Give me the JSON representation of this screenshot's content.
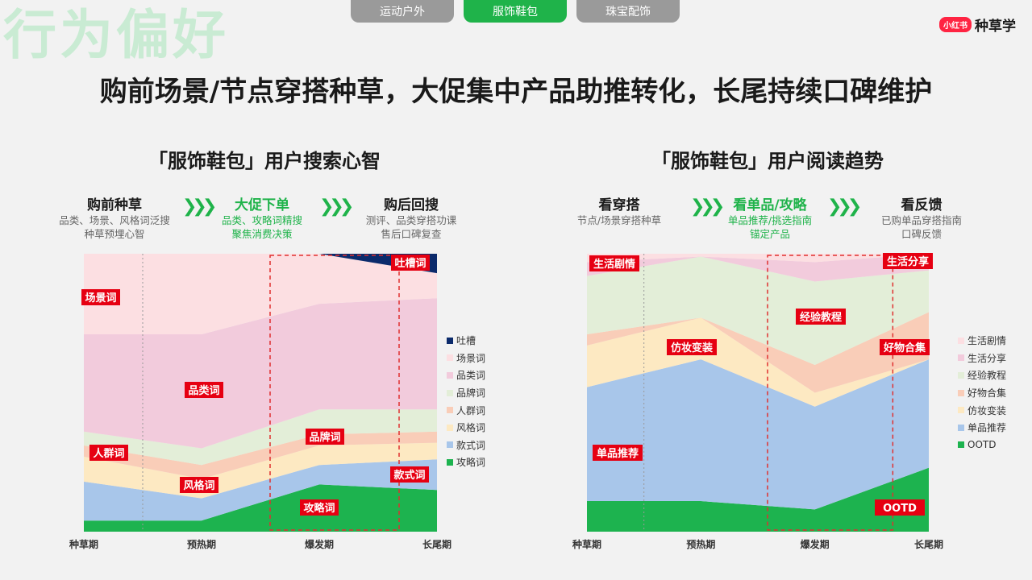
{
  "watermark": "行为偏好",
  "tabs": [
    {
      "label": "运动户外",
      "active": false
    },
    {
      "label": "服饰鞋包",
      "active": true
    },
    {
      "label": "珠宝配饰",
      "active": false
    }
  ],
  "brand": {
    "badge": "小红书",
    "name": "种草学"
  },
  "headline": "购前场景/节点穿搭种草，大促集中产品助推转化，长尾持续口碑维护",
  "left": {
    "title": "「服饰鞋包」用户搜索心智",
    "stages": [
      {
        "title": "购前种草",
        "sub1": "品类、场景、风格词泛搜",
        "sub2": "种草预埋心智"
      },
      {
        "title": "大促下单",
        "sub1": "品类、攻略词精搜",
        "sub2": "聚焦消费决策"
      },
      {
        "title": "购后回搜",
        "sub1": "测评、品类穿搭功课",
        "sub2": "售后口碑复查"
      }
    ]
  },
  "right": {
    "title": "「服饰鞋包」用户阅读趋势",
    "stages": [
      {
        "title": "看穿搭",
        "sub1": "节点/场景穿搭种草",
        "sub2": ""
      },
      {
        "title": "看单品/攻略",
        "sub1": "单品推荐/挑选指南",
        "sub2": "锚定产品"
      },
      {
        "title": "看反馈",
        "sub1": "已购单品穿搭指南",
        "sub2": "口碑反馈"
      }
    ]
  },
  "chart_data": [
    {
      "type": "area",
      "stacked": "percent",
      "categories": [
        "种草期",
        "预热期",
        "爆发期",
        "长尾期"
      ],
      "ylim": [
        0,
        100
      ],
      "legend_position": "right",
      "highlight_range": [
        "爆发期",
        "长尾期"
      ],
      "series": [
        {
          "name": "攻略词",
          "color": "#1db34f",
          "values": [
            4,
            4,
            17,
            15
          ]
        },
        {
          "name": "款式词",
          "color": "#a8c6ea",
          "values": [
            14,
            8,
            7,
            11
          ]
        },
        {
          "name": "风格词",
          "color": "#fde9c2",
          "values": [
            9,
            7,
            7,
            6
          ]
        },
        {
          "name": "人群词",
          "color": "#f9cdb8",
          "values": [
            4,
            5,
            4,
            4
          ]
        },
        {
          "name": "品牌词",
          "color": "#e3eed8",
          "values": [
            5,
            6,
            9,
            8
          ]
        },
        {
          "name": "品类词",
          "color": "#f2cbdc",
          "values": [
            35,
            41,
            38,
            40
          ]
        },
        {
          "name": "场景词",
          "color": "#fcdfe2",
          "values": [
            29,
            29,
            18,
            9
          ]
        },
        {
          "name": "吐槽",
          "color": "#0b2a6b",
          "values": [
            0,
            0,
            0,
            7
          ]
        }
      ],
      "annotations": [
        "场景词",
        "品类词",
        "人群词",
        "风格词",
        "品牌词",
        "攻略词",
        "款式词",
        "吐槽词"
      ]
    },
    {
      "type": "area",
      "stacked": "percent",
      "categories": [
        "种草期",
        "预热期",
        "爆发期",
        "长尾期"
      ],
      "ylim": [
        0,
        100
      ],
      "legend_position": "right",
      "highlight_range": [
        "爆发期",
        "长尾期"
      ],
      "series": [
        {
          "name": "OOTD",
          "color": "#1db34f",
          "values": [
            11,
            11,
            8,
            23
          ]
        },
        {
          "name": "单品推荐",
          "color": "#a8c6ea",
          "values": [
            41,
            51,
            37,
            39
          ]
        },
        {
          "name": "仿妆变装",
          "color": "#fde9c2",
          "values": [
            15,
            15,
            5,
            0
          ]
        },
        {
          "name": "好物合集",
          "color": "#f9cdb8",
          "values": [
            4,
            0,
            10,
            17
          ]
        },
        {
          "name": "经验教程",
          "color": "#e3eed8",
          "values": [
            21,
            22,
            30,
            15
          ]
        },
        {
          "name": "生活分享",
          "color": "#f2cbdc",
          "values": [
            5,
            0,
            7,
            6
          ]
        },
        {
          "name": "生活剧情",
          "color": "#fcdfe2",
          "values": [
            3,
            1,
            3,
            0
          ]
        }
      ],
      "annotations": [
        "生活剧情",
        "生活分享",
        "经验教程",
        "仿妆变装",
        "好物合集",
        "单品推荐",
        "OOTD"
      ]
    }
  ]
}
